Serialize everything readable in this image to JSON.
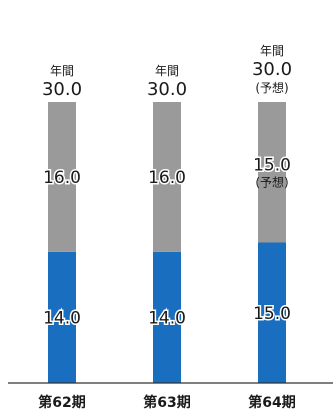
{
  "chart_data": {
    "type": "bar",
    "stacked": true,
    "categories": [
      "第62期",
      "第63期",
      "第64期"
    ],
    "series": [
      {
        "values": [
          14.0,
          14.0,
          15.0
        ],
        "labels": [
          "14.0",
          "14.0",
          "15.0"
        ],
        "color": "#1a6ebf"
      },
      {
        "values": [
          16.0,
          16.0,
          15.0
        ],
        "labels": [
          "16.0",
          "16.0",
          "15.0"
        ],
        "color": "#9a9a9a"
      }
    ],
    "segment_notes": [
      null,
      null,
      "(予想)"
    ],
    "totals": {
      "prefix": "年間",
      "values": [
        30.0,
        30.0,
        30.0
      ],
      "labels": [
        "30.0",
        "30.0",
        "30.0"
      ],
      "notes": [
        null,
        null,
        "(予想)"
      ]
    },
    "ylim": [
      0,
      30.0
    ],
    "grid": false,
    "legend": "none",
    "colors": {
      "axis": "#333333"
    }
  }
}
